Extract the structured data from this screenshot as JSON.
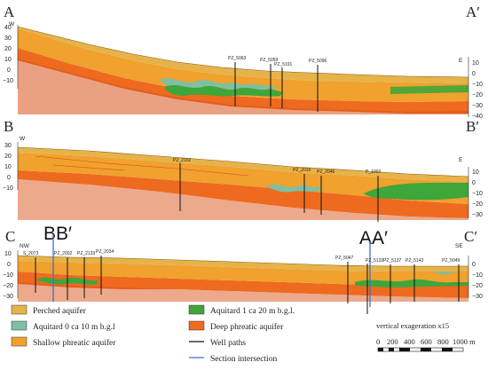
{
  "sections": [
    {
      "id": "AA",
      "left_label": "A",
      "right_label": "A′",
      "left_dir": "W",
      "right_dir": "E",
      "left_ticks": [
        "40",
        "30",
        "20",
        "10",
        "0",
        "−10"
      ],
      "right_ticks": [
        "10",
        "0",
        "−10",
        "−20",
        "−30",
        "−40"
      ],
      "wells": [
        "PZ_5063",
        "PZ_5059",
        "PZ_5191",
        "PZ_5096"
      ]
    },
    {
      "id": "BB",
      "left_label": "B",
      "right_label": "B′",
      "left_dir": "W",
      "right_dir": "E",
      "left_ticks": [
        "30",
        "20",
        "10",
        "0",
        "−10"
      ],
      "right_ticks": [
        "10",
        "0",
        "−10",
        "−20",
        "−30"
      ],
      "wells": [
        "PZ_2102",
        "PZ_2015",
        "PZ_2046",
        "P_1002"
      ]
    },
    {
      "id": "CC",
      "left_label": "C",
      "right_label": "C′",
      "left_dir": "NW",
      "right_dir": "SE",
      "left_ticks": [
        "10",
        "0",
        "−10",
        "−20",
        "−30"
      ],
      "right_ticks": [
        "0",
        "−10",
        "−20",
        "−30"
      ],
      "wells": [
        "S_2073",
        "PZ_2002",
        "PZ_2133",
        "PZ_2034",
        "PZ_5047",
        "PZ_5132",
        "PZ_5137",
        "PZ_5143",
        "PZ_5049"
      ],
      "intersections": [
        "BB′",
        "AA′"
      ]
    }
  ],
  "legend": {
    "items": [
      {
        "label": "Perched aquifer",
        "color": "#e6b34a"
      },
      {
        "label": "Aquitard 0 ca 10 m b.g.l",
        "color": "#7fbfa3"
      },
      {
        "label": "Shallow phreatic aquifer",
        "color": "#f0a12e"
      },
      {
        "label": "Aquitard 1 ca 20 m b.g.l.",
        "color": "#3fa63a"
      },
      {
        "label": "Deep phreatic aquifer",
        "color": "#ee6a1f"
      },
      {
        "label": "Well paths",
        "color": "#111111"
      },
      {
        "label": "Section intersection",
        "color": "#3b6fd1"
      }
    ],
    "exaggeration": "vertical exageration x15",
    "scale_ticks": [
      "0",
      "200",
      "400",
      "600",
      "800",
      "1000 m"
    ]
  },
  "colors": {
    "perched": "#e6b34a",
    "aquitard0": "#7fbfa3",
    "shallow": "#f0a12e",
    "aquitard1": "#3fa63a",
    "deep": "#ee6a1f",
    "deep_dark": "#d9531a",
    "well": "#111111",
    "intersection": "#3b6fd1"
  }
}
